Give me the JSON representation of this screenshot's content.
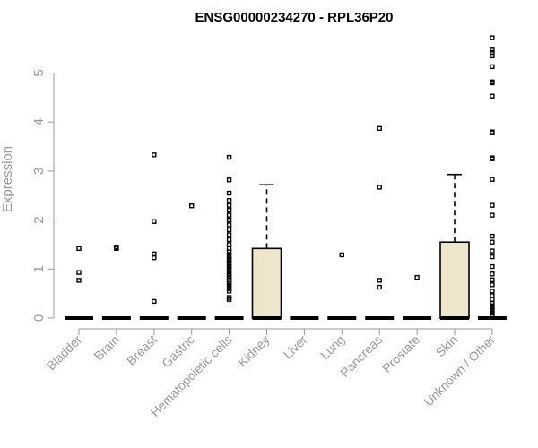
{
  "chart_data": {
    "type": "box",
    "title": "ENSG00000234270 - RPL36P20",
    "ylabel": "Expression",
    "xlabel": "",
    "ylim": [
      0,
      5.8
    ],
    "yticks": [
      0,
      1,
      2,
      3,
      4,
      5
    ],
    "grid": false,
    "legend": "none",
    "box_fill": "#ede6cc",
    "categories": [
      "Bladder",
      "Brain",
      "Breast",
      "Gastric",
      "Hematopoietic cells",
      "Kidney",
      "Liver",
      "Lung",
      "Pancreas",
      "Prostate",
      "Skin",
      "Unknown / Other"
    ],
    "boxes": [
      {
        "category": "Bladder",
        "q1": 0,
        "median": 0,
        "q3": 0,
        "whisker_low": 0,
        "whisker_high": 0,
        "outliers": [
          0.77,
          0.93,
          1.42
        ]
      },
      {
        "category": "Brain",
        "q1": 0,
        "median": 0,
        "q3": 0,
        "whisker_low": 0,
        "whisker_high": 0,
        "outliers": [
          1.42,
          1.45
        ]
      },
      {
        "category": "Breast",
        "q1": 0,
        "median": 0,
        "q3": 0,
        "whisker_low": 0,
        "whisker_high": 0,
        "outliers": [
          0.34,
          1.23,
          1.31,
          1.97,
          3.33
        ]
      },
      {
        "category": "Gastric",
        "q1": 0,
        "median": 0,
        "q3": 0,
        "whisker_low": 0,
        "whisker_high": 0,
        "outliers": [
          2.29
        ]
      },
      {
        "category": "Hematopoietic cells",
        "q1": 0,
        "median": 0,
        "q3": 0,
        "whisker_low": 0,
        "whisker_high": 0,
        "outliers": [
          0.38,
          0.42,
          0.55,
          0.6,
          0.65,
          0.7,
          0.74,
          0.78,
          0.82,
          0.86,
          0.9,
          0.95,
          1.0,
          1.05,
          1.1,
          1.15,
          1.2,
          1.25,
          1.3,
          1.35,
          1.42,
          1.5,
          1.6,
          1.7,
          1.8,
          1.9,
          2.0,
          2.1,
          2.2,
          2.3,
          2.4,
          2.55,
          2.82,
          3.28
        ]
      },
      {
        "category": "Kidney",
        "q1": 0,
        "median": 0,
        "q3": 1.42,
        "whisker_low": 0,
        "whisker_high": 2.72,
        "outliers": []
      },
      {
        "category": "Liver",
        "q1": 0,
        "median": 0,
        "q3": 0,
        "whisker_low": 0,
        "whisker_high": 0,
        "outliers": []
      },
      {
        "category": "Lung",
        "q1": 0,
        "median": 0,
        "q3": 0,
        "whisker_low": 0,
        "whisker_high": 0,
        "outliers": [
          1.29
        ]
      },
      {
        "category": "Pancreas",
        "q1": 0,
        "median": 0,
        "q3": 0,
        "whisker_low": 0,
        "whisker_high": 0,
        "outliers": [
          0.63,
          0.77,
          2.67,
          3.87
        ]
      },
      {
        "category": "Prostate",
        "q1": 0,
        "median": 0,
        "q3": 0,
        "whisker_low": 0,
        "whisker_high": 0,
        "outliers": [
          0.83
        ]
      },
      {
        "category": "Skin",
        "q1": 0,
        "median": 0,
        "q3": 1.55,
        "whisker_low": 0,
        "whisker_high": 2.93,
        "outliers": []
      },
      {
        "category": "Unknown / Other",
        "q1": 0,
        "median": 0,
        "q3": 0,
        "whisker_low": 0,
        "whisker_high": 0,
        "outliers": [
          0.05,
          0.1,
          0.15,
          0.2,
          0.25,
          0.3,
          0.38,
          0.46,
          0.55,
          0.68,
          0.78,
          0.9,
          1.05,
          1.25,
          1.37,
          1.55,
          1.67,
          2.1,
          2.3,
          2.83,
          3.25,
          3.27,
          3.78,
          3.8,
          4.53,
          4.8,
          4.82,
          5.13,
          5.35,
          5.42,
          5.47,
          5.72
        ]
      }
    ]
  }
}
